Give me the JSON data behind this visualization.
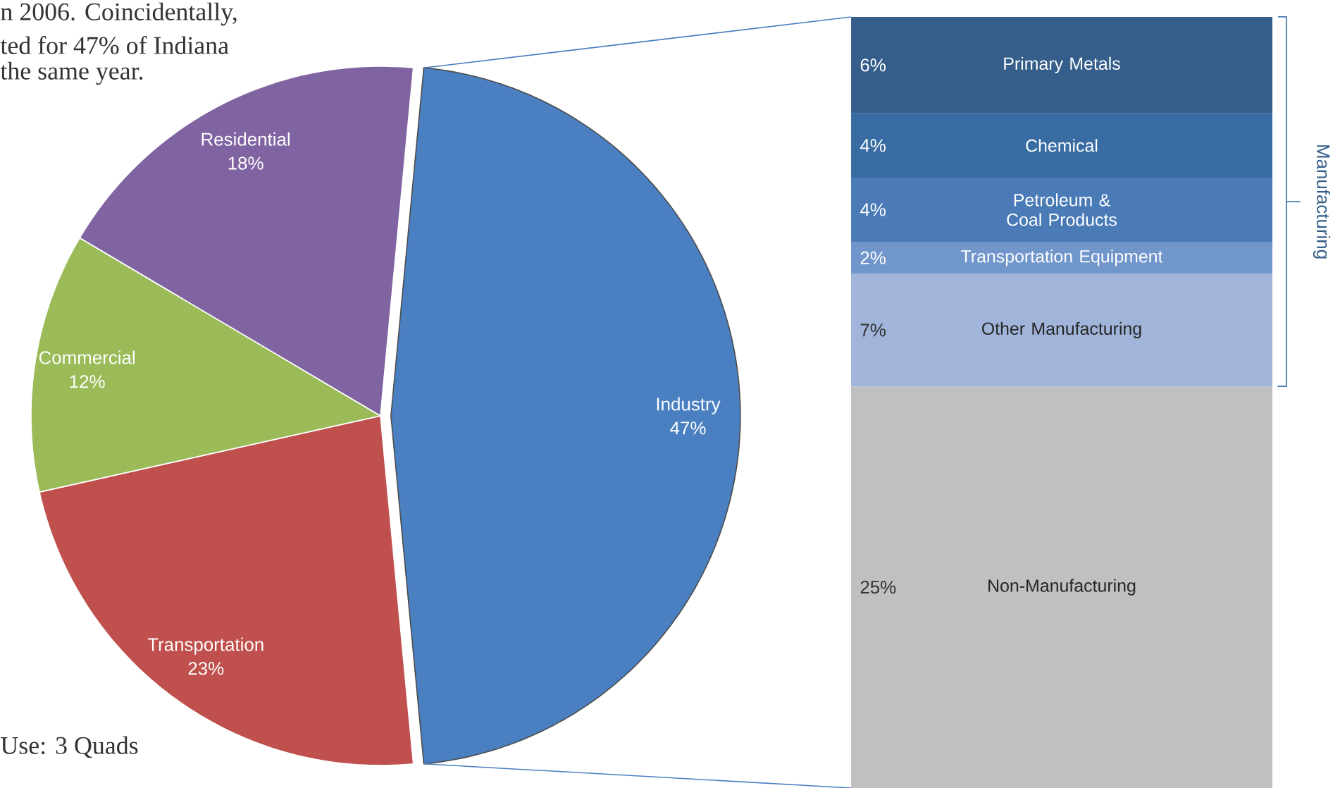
{
  "chart_data": [
    {
      "type": "pie",
      "categories": [
        "Industry",
        "Transportation",
        "Commercial",
        "Residential"
      ],
      "values": [
        47,
        23,
        12,
        18
      ],
      "value_labels": [
        "47%",
        "23%",
        "12%",
        "18%"
      ],
      "colors": [
        "#4a7fc1",
        "#c0504d",
        "#9bbb59",
        "#8064a2"
      ],
      "annotations": [
        "n 2006. Coincidentally,",
        "ted for 47% of Indiana",
        "the same year.",
        "Use: 3 Quads"
      ]
    },
    {
      "type": "bar",
      "stacked": true,
      "categories": [
        null
      ],
      "series": [
        {
          "name": "Non-Manufacturing",
          "color": "#c0c0c0",
          "values": [
            25
          ],
          "value_labels": [
            "25%"
          ]
        },
        {
          "name": "Other Manufacturing",
          "color": "#a0b5d9",
          "values": [
            7
          ],
          "value_labels": [
            "7%"
          ]
        },
        {
          "name": "Transportation Equipment",
          "color": "#7196cb",
          "values": [
            2
          ],
          "value_labels": [
            "2%"
          ]
        },
        {
          "name": "Petroleum & Coal Products",
          "color": "#4a7bb7",
          "values": [
            4
          ],
          "value_labels": [
            "4%"
          ]
        },
        {
          "name": "Chemical",
          "color": "#386ca3",
          "values": [
            4
          ],
          "value_labels": [
            "4%"
          ]
        },
        {
          "name": "Primary Metals",
          "color": "#355e8b",
          "values": [
            6
          ],
          "value_labels": [
            "6%"
          ]
        }
      ],
      "annotations": [
        "Manufacturing"
      ]
    }
  ]
}
